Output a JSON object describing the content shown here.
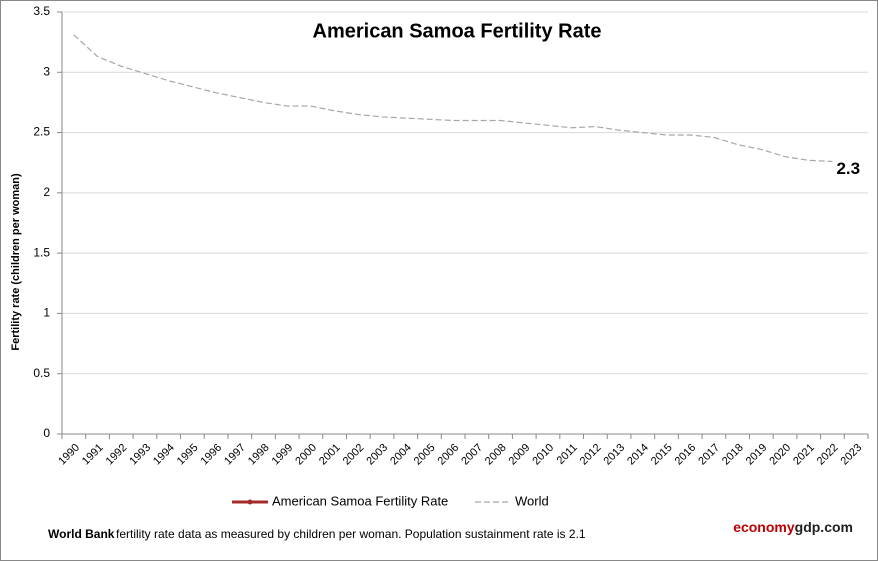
{
  "chart_data": {
    "type": "line",
    "title": "American Samoa Fertility Rate",
    "y_label": "Fertility rate (children per woman)",
    "categories": [
      "1990",
      "1991",
      "1992",
      "1993",
      "1994",
      "1995",
      "1996",
      "1997",
      "1998",
      "1999",
      "2000",
      "2001",
      "2002",
      "2003",
      "2004",
      "2005",
      "2006",
      "2007",
      "2008",
      "2009",
      "2010",
      "2011",
      "2012",
      "2013",
      "2014",
      "2015",
      "2016",
      "2017",
      "2018",
      "2019",
      "2020",
      "2021",
      "2022",
      "2023"
    ],
    "series": [
      {
        "name": "American Samoa Fertility Rate",
        "color": "#a52a2a",
        "dashed": false,
        "values": [
          null,
          null,
          null,
          null,
          null,
          null,
          null,
          null,
          null,
          null,
          null,
          null,
          null,
          null,
          null,
          null,
          null,
          null,
          null,
          null,
          null,
          null,
          null,
          null,
          null,
          null,
          null,
          null,
          null,
          null,
          null,
          null,
          null,
          null
        ]
      },
      {
        "name": "World",
        "color": "#a6a6a6",
        "dashed": true,
        "values": [
          3.31,
          3.13,
          3.05,
          2.99,
          2.93,
          2.88,
          2.83,
          2.79,
          2.75,
          2.72,
          2.72,
          2.68,
          2.65,
          2.63,
          2.62,
          2.61,
          2.6,
          2.6,
          2.6,
          2.58,
          2.56,
          2.54,
          2.55,
          2.52,
          2.5,
          2.48,
          2.48,
          2.46,
          2.4,
          2.36,
          2.3,
          2.27,
          2.26,
          null
        ]
      }
    ],
    "annotation": "2.3",
    "ylim": [
      0,
      3.5
    ],
    "yticks": [
      0,
      0.5,
      1,
      1.5,
      2,
      2.5,
      3,
      3.5
    ],
    "grid": true,
    "legend": "bottom",
    "source_bold": "World Bank",
    "source_text": "fertility rate data as measured by children per woman.  Population sustainment rate is 2.1",
    "brand": [
      "economy",
      "gdp.com"
    ]
  }
}
